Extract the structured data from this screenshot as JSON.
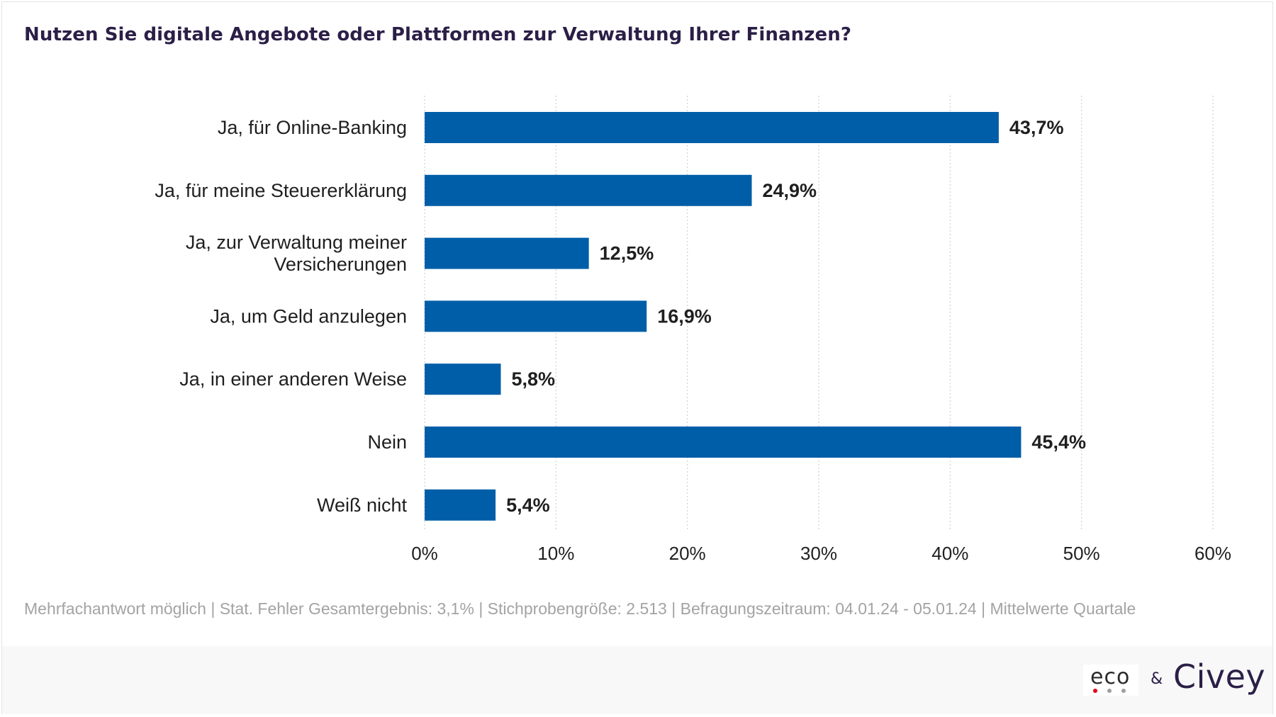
{
  "title": "Nutzen Sie digitale Angebote oder Plattformen zur Verwaltung Ihrer Finanzen?",
  "footnote": "Mehrfachantwort möglich | Stat. Fehler Gesamtergebnis: 3,1% | Stichprobengröße: 2.513 | Befragungszeitraum: 04.01.24 - 05.01.24 | Mittelwerte Quartale",
  "logos": {
    "eco": "eco",
    "ampersand": "&",
    "civey": "Civey"
  },
  "colors": {
    "bar": "#005ea8",
    "title": "#2b1f47",
    "grid": "#d0d0d0",
    "eco_dot_1": "#e2001a",
    "eco_dot_2": "#9e9e9e",
    "eco_dot_3": "#9e9e9e"
  },
  "chart_data": {
    "type": "bar",
    "orientation": "horizontal",
    "categories": [
      [
        "Ja, für Online-Banking"
      ],
      [
        "Ja, für meine Steuererklärung"
      ],
      [
        "Ja, zur Verwaltung meiner",
        "Versicherungen"
      ],
      [
        "Ja, um Geld anzulegen"
      ],
      [
        "Ja, in einer anderen Weise"
      ],
      [
        "Nein"
      ],
      [
        "Weiß nicht"
      ]
    ],
    "values": [
      43.7,
      24.9,
      12.5,
      16.9,
      5.8,
      45.4,
      5.4
    ],
    "value_labels": [
      "43,7%",
      "24,9%",
      "12,5%",
      "16,9%",
      "5,8%",
      "45,4%",
      "5,4%"
    ],
    "xlim": [
      0,
      60
    ],
    "ticks": [
      0,
      10,
      20,
      30,
      40,
      50,
      60
    ],
    "tick_labels": [
      "0%",
      "10%",
      "20%",
      "30%",
      "40%",
      "50%",
      "60%"
    ],
    "grid": "vertical dotted"
  }
}
